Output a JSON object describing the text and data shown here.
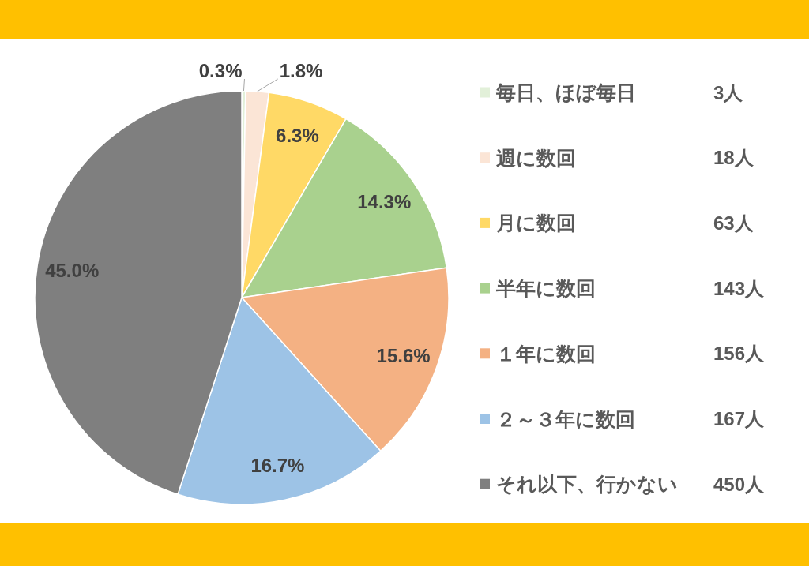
{
  "chart_data": {
    "type": "pie",
    "categories": [
      "毎日、ほぼ毎日",
      "週に数回",
      "月に数回",
      "半年に数回",
      "１年に数回",
      "２～３年に数回",
      "それ以下、行かない"
    ],
    "values": [
      0.3,
      1.8,
      6.3,
      14.3,
      15.6,
      16.7,
      45.0
    ],
    "colors": [
      "#e2f0d9",
      "#fbe5d6",
      "#ffd966",
      "#a9d18e",
      "#f4b183",
      "#9dc3e6",
      "#7f7f7f"
    ],
    "value_labels": [
      "0.3%",
      "1.8%",
      "6.3%",
      "14.3%",
      "15.6%",
      "16.7%",
      "45.0%"
    ],
    "annotations": [
      "3人",
      "18人",
      "63人",
      "143人",
      "156人",
      "167人",
      "450人"
    ],
    "legend": "right"
  }
}
